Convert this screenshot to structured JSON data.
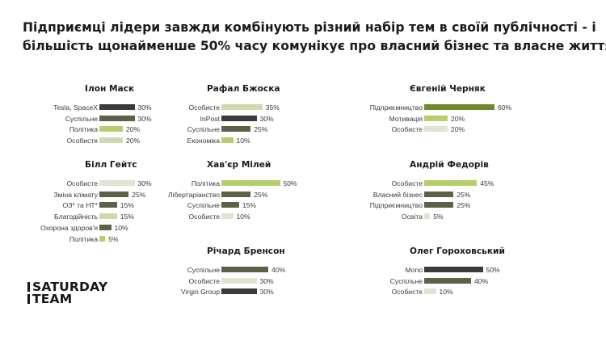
{
  "title": {
    "line1": "Підприємці лідери завжди комбінують різний набір тем в своїй публічності - і",
    "line2": "більшість щонайменше 50% часу комунікує про власний бізнес та власне життя"
  },
  "colors": {
    "dark": "#3b3b3b",
    "olive": "#5d6145",
    "green": "#6e8b2c",
    "lime": "#b6cf6b",
    "pale_green": "#cfd9ae",
    "pale": "#e2e3d3"
  },
  "logo": {
    "line1": "SATURDAY",
    "line2": "TEAM"
  },
  "chart_data": [
    {
      "type": "bar",
      "title": "Ілон Маск",
      "categories": [
        "Tesla, SpaceX",
        "Суспільне",
        "Політика",
        "Особисте"
      ],
      "values": [
        30,
        30,
        20,
        20
      ],
      "value_labels": [
        "30%",
        "30%",
        "20%",
        "20%"
      ],
      "colors": [
        "dark",
        "olive",
        "lime",
        "pale_green"
      ]
    },
    {
      "type": "bar",
      "title": "Рафал Бжоска",
      "categories": [
        "Особисте",
        "InPost",
        "Суспільне",
        "Економіка"
      ],
      "values": [
        35,
        30,
        25,
        10
      ],
      "value_labels": [
        "35%",
        "30%",
        "25%",
        "10%"
      ],
      "colors": [
        "pale_green",
        "dark",
        "olive",
        "lime"
      ]
    },
    {
      "type": "bar",
      "title": "Євгеній Черняк",
      "categories": [
        "Підприємництво",
        "Мотивація",
        "Особисте"
      ],
      "values": [
        60,
        20,
        20
      ],
      "value_labels": [
        "60%",
        "20%",
        "20%"
      ],
      "colors": [
        "green",
        "lime",
        "pale"
      ]
    },
    {
      "type": "bar",
      "title": "Білл Гейтс",
      "categories": [
        "Особисте",
        "Зміна клімату",
        "ОЗ* та НТ*",
        "Благодійність",
        "Охорона здоров'я",
        "Політика"
      ],
      "values": [
        30,
        25,
        15,
        15,
        10,
        5
      ],
      "value_labels": [
        "30%",
        "25%",
        "15%",
        "15%",
        "10%",
        "5%"
      ],
      "colors": [
        "pale",
        "olive",
        "olive",
        "pale_green",
        "olive",
        "lime"
      ]
    },
    {
      "type": "bar",
      "title": "Хав'єр Мілей",
      "categories": [
        "Політика",
        "Лібертаріанство",
        "Суспільне",
        "Особисте"
      ],
      "values": [
        50,
        25,
        15,
        10
      ],
      "value_labels": [
        "50%",
        "25%",
        "15%",
        "10%"
      ],
      "colors": [
        "lime",
        "olive",
        "olive",
        "pale"
      ]
    },
    {
      "type": "bar",
      "title": "Андрій Федорів",
      "categories": [
        "Особисте",
        "Власний бізнес",
        "Підприємництво",
        "Освіта"
      ],
      "values": [
        45,
        25,
        25,
        5
      ],
      "value_labels": [
        "45%",
        "25%",
        "25%",
        "5%"
      ],
      "colors": [
        "lime",
        "olive",
        "olive",
        "pale"
      ]
    },
    {
      "type": "bar",
      "title": "Річард Бренсон",
      "categories": [
        "Суспільне",
        "Особисте",
        "Virgin Group"
      ],
      "values": [
        40,
        30,
        30
      ],
      "value_labels": [
        "40%",
        "30%",
        "30%"
      ],
      "colors": [
        "olive",
        "pale",
        "dark"
      ]
    },
    {
      "type": "bar",
      "title": "Олег Гороховський",
      "categories": [
        "Mono",
        "Суспільне",
        "Особисте"
      ],
      "values": [
        50,
        40,
        10
      ],
      "value_labels": [
        "50%",
        "40%",
        "10%"
      ],
      "colors": [
        "dark",
        "olive",
        "pale"
      ]
    }
  ]
}
